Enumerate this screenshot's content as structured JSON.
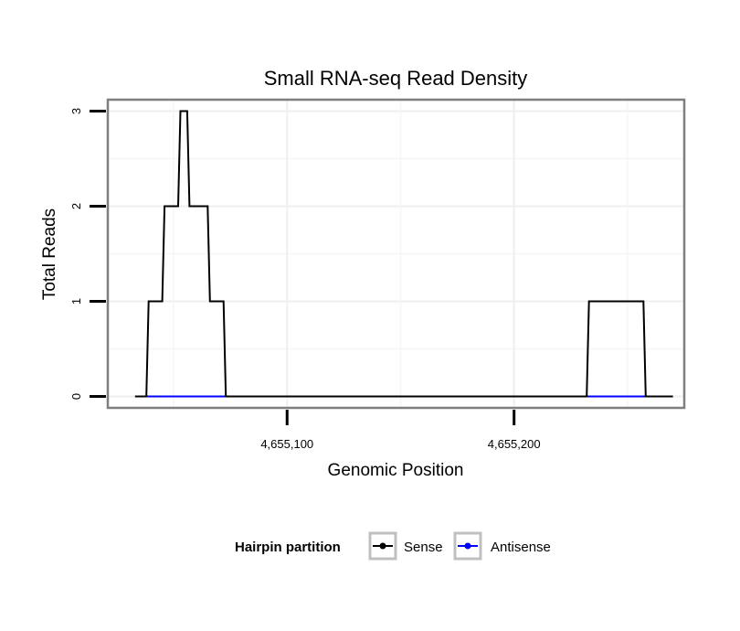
{
  "chart_data": {
    "type": "line",
    "title": "Small RNA-seq Read Density",
    "xlabel": "Genomic Position",
    "ylabel": "Total Reads",
    "xlim": [
      4655021,
      4655275
    ],
    "ylim": [
      -0.12,
      3.12
    ],
    "x_ticks": [
      4655100,
      4655200
    ],
    "x_tick_labels": [
      "4,655,100",
      "4,655,200"
    ],
    "y_ticks": [
      0,
      1,
      2,
      3
    ],
    "y_tick_labels": [
      "0",
      "1",
      "2",
      "3"
    ],
    "grid": true,
    "legend_title": "Hairpin partition",
    "legend_position": "bottom",
    "series": [
      {
        "name": "Sense",
        "color": "#000000",
        "x": [
          4655033,
          4655038,
          4655039,
          4655045,
          4655046,
          4655052,
          4655053,
          4655056,
          4655057,
          4655065,
          4655066,
          4655072,
          4655073,
          4655232,
          4655233,
          4655257,
          4655258,
          4655270
        ],
        "values": [
          0,
          0,
          1,
          1,
          2,
          2,
          3,
          3,
          2,
          2,
          1,
          1,
          0,
          0,
          1,
          1,
          0,
          0
        ]
      },
      {
        "name": "Antisense",
        "color": "#0000ff",
        "x": [
          4655038,
          4655073,
          4655233,
          4655258
        ],
        "values": [
          0,
          0,
          0,
          0
        ]
      }
    ]
  }
}
